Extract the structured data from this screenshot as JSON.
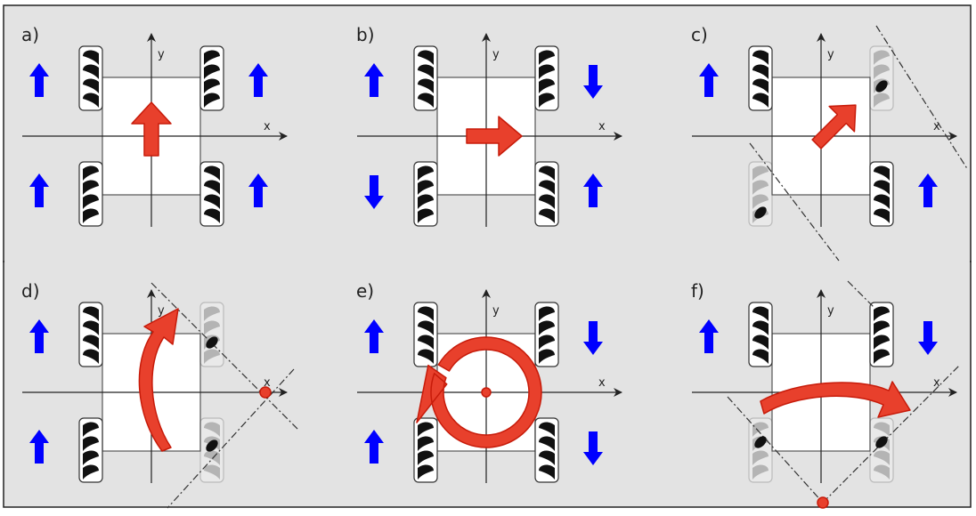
{
  "panels": [
    {
      "id": "a",
      "label": "a)",
      "x_axis": "x",
      "y_axis": "y",
      "wheel_arrows": [
        "up",
        "up",
        "up",
        "up"
      ],
      "motion": "forward"
    },
    {
      "id": "b",
      "label": "b)",
      "x_axis": "x",
      "y_axis": "y",
      "wheel_arrows": [
        "up",
        "down",
        "down",
        "up"
      ],
      "motion": "sideways-right"
    },
    {
      "id": "c",
      "label": "c)",
      "x_axis": "x",
      "y_axis": "y",
      "wheel_arrows": [
        "up",
        "none",
        "none",
        "up"
      ],
      "motion": "diagonal"
    },
    {
      "id": "d",
      "label": "d)",
      "x_axis": "x",
      "y_axis": "y",
      "wheel_arrows": [
        "up",
        "none",
        "up",
        "none"
      ],
      "motion": "turn-about-point"
    },
    {
      "id": "e",
      "label": "e)",
      "x_axis": "x",
      "y_axis": "y",
      "wheel_arrows": [
        "up",
        "down",
        "up",
        "down"
      ],
      "motion": "rotate-in-place"
    },
    {
      "id": "f",
      "label": "f)",
      "x_axis": "x",
      "y_axis": "y",
      "wheel_arrows": [
        "up",
        "down",
        "none",
        "none"
      ],
      "motion": "turn-about-point"
    }
  ],
  "colors": {
    "background": "#e3e3e3",
    "wheel_arrow": "#0000ff",
    "motion_arrow": "#e8402c",
    "motion_arrow_outline": "#c71b0a",
    "robot_body": "#ffffff",
    "outline": "#222222"
  }
}
